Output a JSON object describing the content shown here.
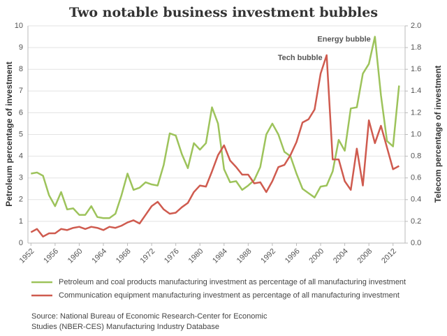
{
  "chart_data": {
    "type": "line",
    "title": "Two notable business investment bubbles",
    "y_label": "Petroleum percentage of investment",
    "y2_label": "Telecom percentage of investment",
    "x": [
      1952,
      1953,
      1954,
      1955,
      1956,
      1957,
      1958,
      1959,
      1960,
      1961,
      1962,
      1963,
      1964,
      1965,
      1966,
      1967,
      1968,
      1969,
      1970,
      1971,
      1972,
      1973,
      1974,
      1975,
      1976,
      1977,
      1978,
      1979,
      1980,
      1981,
      1982,
      1983,
      1984,
      1985,
      1986,
      1987,
      1988,
      1989,
      1990,
      1991,
      1992,
      1993,
      1994,
      1995,
      1996,
      1997,
      1998,
      1999,
      2000,
      2001,
      2002,
      2003,
      2004,
      2005,
      2006,
      2007,
      2008,
      2009,
      2010,
      2011,
      2012,
      2013
    ],
    "series": [
      {
        "name": "Petroleum and coal products manufacturing investment as percentage of all manufacturing investment",
        "color": "#9dc35b",
        "axis": "y",
        "values": [
          3.2,
          3.25,
          3.1,
          2.2,
          1.7,
          2.35,
          1.55,
          1.6,
          1.3,
          1.3,
          1.7,
          1.2,
          1.15,
          1.15,
          1.35,
          2.2,
          3.2,
          2.45,
          2.55,
          2.8,
          2.7,
          2.65,
          3.6,
          5.05,
          4.95,
          4.1,
          3.45,
          4.6,
          4.3,
          4.6,
          6.25,
          5.5,
          3.4,
          2.8,
          2.85,
          2.45,
          2.65,
          2.9,
          3.5,
          5.0,
          5.5,
          5.0,
          4.2,
          4.0,
          3.2,
          2.5,
          2.3,
          2.1,
          2.6,
          2.65,
          3.3,
          4.75,
          4.25,
          6.2,
          6.25,
          7.8,
          8.25,
          9.5,
          6.8,
          4.7,
          4.45,
          7.25
        ]
      },
      {
        "name": "Communication equipment manufacturing investment as percentage of all manufacturing investment",
        "color": "#cf5b4f",
        "axis": "y2",
        "values": [
          0.1,
          0.13,
          0.06,
          0.09,
          0.09,
          0.13,
          0.12,
          0.14,
          0.15,
          0.13,
          0.15,
          0.14,
          0.12,
          0.15,
          0.14,
          0.16,
          0.19,
          0.21,
          0.18,
          0.26,
          0.34,
          0.38,
          0.31,
          0.27,
          0.28,
          0.33,
          0.37,
          0.47,
          0.53,
          0.52,
          0.66,
          0.81,
          0.9,
          0.76,
          0.7,
          0.63,
          0.63,
          0.55,
          0.56,
          0.47,
          0.57,
          0.7,
          0.72,
          0.81,
          0.93,
          1.11,
          1.14,
          1.23,
          1.56,
          1.73,
          0.77,
          0.77,
          0.57,
          0.49,
          0.87,
          0.53,
          1.13,
          0.92,
          1.08,
          0.88,
          0.68,
          0.71
        ]
      }
    ],
    "annotations": [
      {
        "text": "Energy bubble",
        "x": 2009,
        "series": 0
      },
      {
        "text": "Tech bubble",
        "x": 2001,
        "series": 1
      }
    ],
    "xlim": [
      1951.5,
      2014
    ],
    "xticks": [
      1952,
      1956,
      1960,
      1964,
      1968,
      1972,
      1976,
      1980,
      1984,
      1988,
      1992,
      1996,
      2000,
      2004,
      2008,
      2012
    ],
    "ylim": [
      0,
      10
    ],
    "yticks": [
      0,
      1,
      2,
      3,
      4,
      5,
      6,
      7,
      8,
      9,
      10
    ],
    "y2lim": [
      0,
      2
    ],
    "y2ticks": [
      {
        "value": 0,
        "label": "0.0"
      },
      0.2,
      0.4,
      0.6,
      0.8,
      {
        "value": 1,
        "label": "1.0"
      },
      1.2,
      1.4,
      1.6,
      1.8,
      {
        "value": 2,
        "label": "2.0"
      }
    ],
    "grid": true,
    "source": [
      "Source: National Bureau of Economic Research-Center for Economic",
      "Studies (NBER-CES) Manufacturing Industry Database"
    ]
  }
}
